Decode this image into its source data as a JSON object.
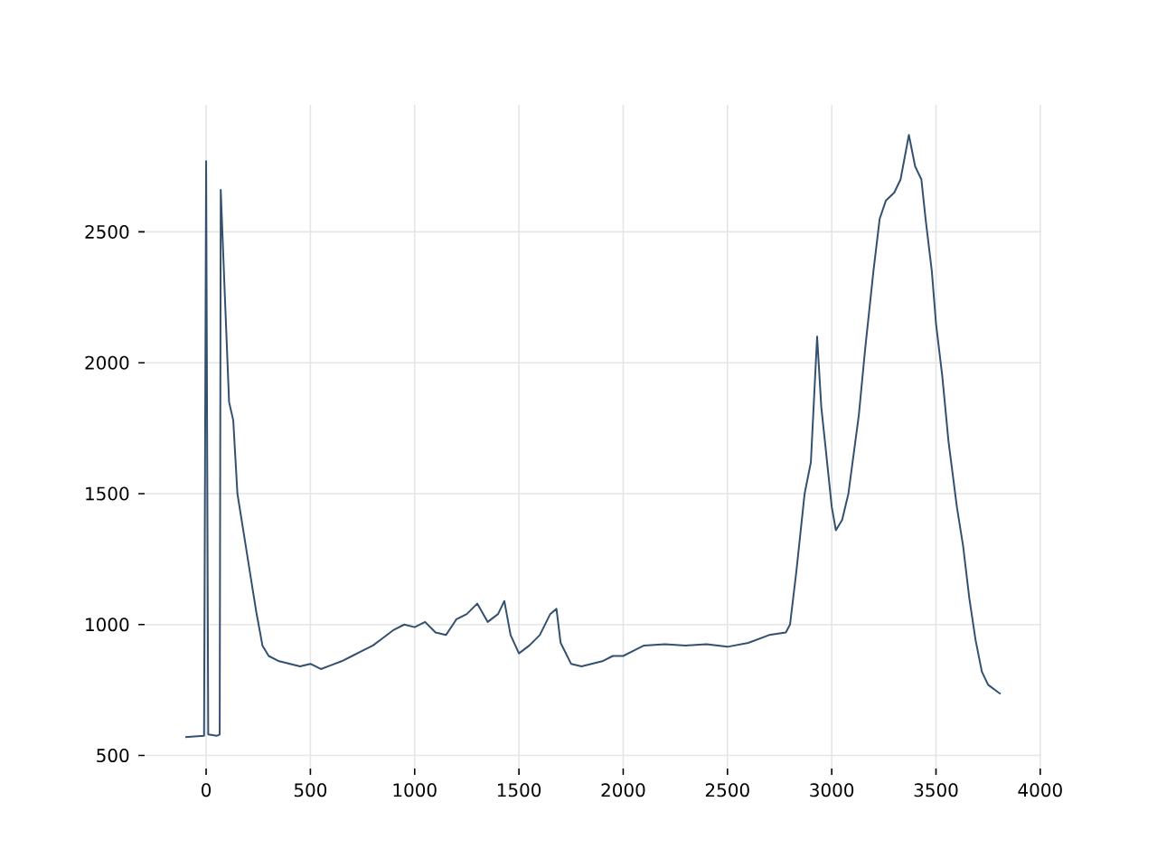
{
  "chart_data": {
    "type": "line",
    "grid": true,
    "xlim": [
      -295,
      4005
    ],
    "ylim": [
      450,
      2985
    ],
    "xticks": [
      0,
      500,
      1000,
      1500,
      2000,
      2500,
      3000,
      3500,
      4000
    ],
    "yticks": [
      500,
      1000,
      1500,
      2000,
      2500
    ],
    "series": [
      {
        "color": "#34506f",
        "x": [
          -100,
          -10,
          0,
          10,
          50,
          65,
          70,
          90,
          110,
          130,
          150,
          180,
          210,
          240,
          270,
          300,
          350,
          400,
          450,
          500,
          550,
          600,
          650,
          700,
          750,
          800,
          850,
          900,
          950,
          1000,
          1050,
          1100,
          1150,
          1200,
          1250,
          1300,
          1350,
          1400,
          1430,
          1460,
          1500,
          1550,
          1600,
          1650,
          1680,
          1700,
          1750,
          1800,
          1850,
          1900,
          1950,
          2000,
          2050,
          2100,
          2200,
          2300,
          2400,
          2500,
          2600,
          2700,
          2780,
          2800,
          2830,
          2870,
          2900,
          2930,
          2950,
          2970,
          3000,
          3020,
          3050,
          3080,
          3100,
          3130,
          3160,
          3200,
          3230,
          3260,
          3300,
          3330,
          3370,
          3400,
          3430,
          3450,
          3480,
          3500,
          3530,
          3560,
          3600,
          3630,
          3660,
          3690,
          3720,
          3750,
          3800,
          3810
        ],
        "values": [
          570,
          575,
          2770,
          580,
          575,
          580,
          2660,
          2250,
          1850,
          1780,
          1500,
          1350,
          1200,
          1050,
          920,
          880,
          860,
          850,
          840,
          850,
          830,
          845,
          860,
          880,
          900,
          920,
          950,
          980,
          1000,
          990,
          1010,
          970,
          960,
          1020,
          1040,
          1080,
          1010,
          1040,
          1090,
          960,
          890,
          920,
          960,
          1040,
          1060,
          930,
          850,
          840,
          850,
          860,
          880,
          880,
          900,
          920,
          925,
          920,
          925,
          915,
          930,
          960,
          970,
          1000,
          1200,
          1500,
          1620,
          2100,
          1830,
          1680,
          1450,
          1360,
          1400,
          1500,
          1620,
          1800,
          2050,
          2350,
          2550,
          2620,
          2650,
          2700,
          2870,
          2750,
          2700,
          2550,
          2350,
          2150,
          1950,
          1700,
          1450,
          1300,
          1100,
          940,
          820,
          770,
          740,
          735
        ]
      }
    ]
  }
}
